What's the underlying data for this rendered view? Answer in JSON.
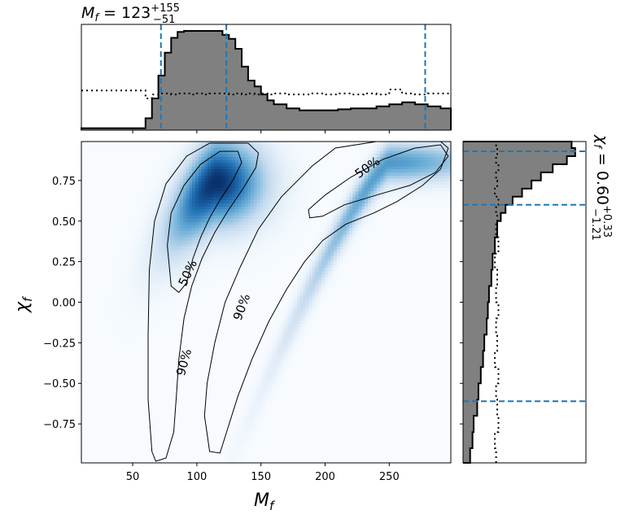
{
  "chart_data": {
    "type": "heatmap",
    "xlabel_symbol": "M",
    "xlabel_sub": "f",
    "ylabel_symbol": "χ",
    "ylabel_sub": "f",
    "xlim": [
      10,
      298
    ],
    "ylim": [
      -0.99,
      0.99
    ],
    "x_ticks": [
      {
        "value": 50,
        "label": "50"
      },
      {
        "value": 100,
        "label": "100"
      },
      {
        "value": 150,
        "label": "150"
      },
      {
        "value": 200,
        "label": "200"
      },
      {
        "value": 250,
        "label": "250"
      }
    ],
    "y_ticks": [
      {
        "value": 0.75,
        "label": "0.75"
      },
      {
        "value": 0.5,
        "label": "0.50"
      },
      {
        "value": 0.25,
        "label": "0.25"
      },
      {
        "value": 0.0,
        "label": "0.00"
      },
      {
        "value": -0.25,
        "label": "−0.25"
      },
      {
        "value": -0.5,
        "label": "−0.50"
      },
      {
        "value": -0.75,
        "label": "−0.75"
      }
    ],
    "density_modes": [
      {
        "mass": 115,
        "spin": 0.74,
        "sigma_mass": 14,
        "sigma_spin": 0.17,
        "weight": 1.0
      },
      {
        "mass": 250,
        "spin": 0.86,
        "sigma_mass": 28,
        "sigma_spin": 0.08,
        "weight": 0.55
      }
    ],
    "colormap": [
      "#f7fbff",
      "#c6dbef",
      "#6baed6",
      "#2171b5",
      "#08306b"
    ],
    "contour_labels": [
      {
        "text": "50%",
        "mass": 93,
        "spin": 0.18,
        "angle": -65
      },
      {
        "text": "90%",
        "mass": 90,
        "spin": -0.37,
        "angle": -75
      },
      {
        "text": "90%",
        "mass": 135,
        "spin": -0.03,
        "angle": -70
      },
      {
        "text": "50%",
        "mass": 233,
        "spin": 0.83,
        "angle": -35
      }
    ],
    "mass_marginal": {
      "title_value": "123",
      "upper": "+155",
      "lower": "−51",
      "quantiles": [
        72,
        123,
        278
      ],
      "bin_edges": [
        10,
        20,
        30,
        40,
        50,
        60,
        65,
        70,
        75,
        80,
        85,
        90,
        95,
        100,
        105,
        110,
        115,
        120,
        125,
        130,
        135,
        140,
        145,
        150,
        155,
        160,
        170,
        180,
        190,
        200,
        210,
        220,
        230,
        240,
        250,
        260,
        270,
        280,
        290,
        298
      ],
      "posterior": [
        0.02,
        0.02,
        0.02,
        0.02,
        0.02,
        0.12,
        0.32,
        0.55,
        0.78,
        0.93,
        0.99,
        1.0,
        1.0,
        1.0,
        1.0,
        1.0,
        1.0,
        0.96,
        0.92,
        0.82,
        0.64,
        0.5,
        0.44,
        0.36,
        0.3,
        0.26,
        0.22,
        0.2,
        0.2,
        0.2,
        0.21,
        0.22,
        0.22,
        0.24,
        0.26,
        0.28,
        0.26,
        0.24,
        0.22
      ],
      "prior": [
        0.4,
        0.4,
        0.4,
        0.4,
        0.4,
        0.32,
        0.36,
        0.37,
        0.37,
        0.36,
        0.37,
        0.37,
        0.36,
        0.37,
        0.36,
        0.37,
        0.37,
        0.37,
        0.36,
        0.37,
        0.36,
        0.37,
        0.36,
        0.37,
        0.36,
        0.37,
        0.36,
        0.36,
        0.37,
        0.36,
        0.37,
        0.36,
        0.37,
        0.36,
        0.41,
        0.37,
        0.36,
        0.37,
        0.37
      ]
    },
    "spin_marginal": {
      "title_value": "0.60",
      "upper": "+0.33",
      "lower": "−1.21",
      "quantiles": [
        -0.61,
        0.6,
        0.93
      ],
      "bin_edges": [
        -0.99,
        -0.9,
        -0.8,
        -0.7,
        -0.6,
        -0.5,
        -0.4,
        -0.3,
        -0.2,
        -0.1,
        0.0,
        0.1,
        0.2,
        0.3,
        0.4,
        0.5,
        0.55,
        0.6,
        0.65,
        0.7,
        0.75,
        0.8,
        0.85,
        0.9,
        0.95,
        0.99
      ],
      "posterior": [
        0.06,
        0.08,
        0.09,
        0.12,
        0.13,
        0.15,
        0.17,
        0.18,
        0.2,
        0.21,
        0.22,
        0.24,
        0.25,
        0.27,
        0.29,
        0.32,
        0.36,
        0.42,
        0.5,
        0.58,
        0.66,
        0.76,
        0.88,
        0.95,
        0.92
      ],
      "prior": [
        0.28,
        0.27,
        0.3,
        0.29,
        0.28,
        0.3,
        0.27,
        0.29,
        0.28,
        0.3,
        0.28,
        0.29,
        0.27,
        0.3,
        0.28,
        0.29,
        0.28,
        0.3,
        0.27,
        0.29,
        0.28,
        0.3,
        0.28,
        0.29,
        0.28
      ]
    }
  },
  "colors": {
    "posterior_fill": "#808080",
    "quantile_line": "#1f77b4",
    "contour": "#000000"
  }
}
